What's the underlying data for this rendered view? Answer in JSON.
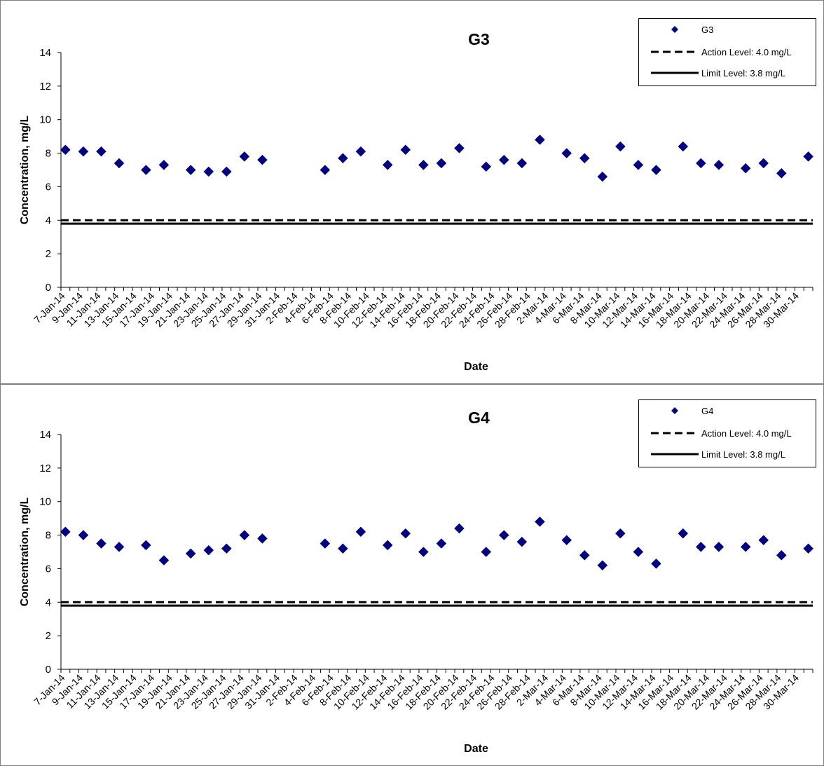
{
  "chart_data": [
    {
      "type": "scatter",
      "title": "G3",
      "xlabel": "Date",
      "ylabel": "Concentration, mg/L",
      "ylim": [
        0,
        14
      ],
      "yticks": [
        "0",
        "2",
        "4",
        "6",
        "8",
        "10",
        "12",
        "14"
      ],
      "grid": false,
      "legend_position": "top-right",
      "x_ticks": [
        "7-Jan-14",
        "9-Jan-14",
        "11-Jan-14",
        "13-Jan-14",
        "15-Jan-14",
        "17-Jan-14",
        "19-Jan-14",
        "21-Jan-14",
        "23-Jan-14",
        "25-Jan-14",
        "27-Jan-14",
        "29-Jan-14",
        "31-Jan-14",
        "2-Feb-14",
        "4-Feb-14",
        "6-Feb-14",
        "8-Feb-14",
        "10-Feb-14",
        "12-Feb-14",
        "14-Feb-14",
        "16-Feb-14",
        "18-Feb-14",
        "20-Feb-14",
        "22-Feb-14",
        "24-Feb-14",
        "26-Feb-14",
        "28-Feb-14",
        "2-Mar-14",
        "4-Mar-14",
        "6-Mar-14",
        "8-Mar-14",
        "10-Mar-14",
        "12-Mar-14",
        "14-Mar-14",
        "16-Mar-14",
        "18-Mar-14",
        "20-Mar-14",
        "22-Mar-14",
        "24-Mar-14",
        "26-Mar-14",
        "28-Mar-14",
        "30-Mar-14"
      ],
      "x_last": "31-Mar-14",
      "series": [
        {
          "name": "G3",
          "kind": "points",
          "color": "#000080",
          "x": [
            "7-Jan-14",
            "9-Jan-14",
            "11-Jan-14",
            "13-Jan-14",
            "16-Jan-14",
            "18-Jan-14",
            "21-Jan-14",
            "23-Jan-14",
            "25-Jan-14",
            "27-Jan-14",
            "29-Jan-14",
            "5-Feb-14",
            "7-Feb-14",
            "9-Feb-14",
            "12-Feb-14",
            "14-Feb-14",
            "16-Feb-14",
            "18-Feb-14",
            "20-Feb-14",
            "23-Feb-14",
            "25-Feb-14",
            "27-Feb-14",
            "1-Mar-14",
            "4-Mar-14",
            "6-Mar-14",
            "8-Mar-14",
            "10-Mar-14",
            "12-Mar-14",
            "14-Mar-14",
            "17-Mar-14",
            "19-Mar-14",
            "21-Mar-14",
            "24-Mar-14",
            "26-Mar-14",
            "28-Mar-14",
            "31-Mar-14"
          ],
          "y": [
            8.2,
            8.1,
            8.1,
            7.4,
            7.0,
            7.3,
            7.0,
            6.9,
            6.9,
            7.8,
            7.6,
            7.0,
            7.7,
            8.1,
            7.3,
            8.2,
            7.3,
            7.4,
            8.3,
            7.2,
            7.6,
            7.4,
            8.8,
            8.0,
            7.7,
            6.6,
            8.4,
            7.3,
            7.0,
            8.4,
            7.4,
            7.3,
            7.1,
            7.4,
            6.8,
            7.8
          ]
        },
        {
          "name": "Action Level: 4.0 mg/L",
          "kind": "line",
          "style": "dashed",
          "color": "#000000",
          "y": 4.0
        },
        {
          "name": "Limit Level: 3.8 mg/L",
          "kind": "line",
          "style": "solid",
          "color": "#000000",
          "y": 3.8
        }
      ]
    },
    {
      "type": "scatter",
      "title": "G4",
      "xlabel": "Date",
      "ylabel": "Concentration, mg/L",
      "ylim": [
        0,
        14
      ],
      "yticks": [
        "0",
        "2",
        "4",
        "6",
        "8",
        "10",
        "12",
        "14"
      ],
      "grid": false,
      "legend_position": "top-right",
      "x_ticks": [
        "7-Jan-14",
        "9-Jan-14",
        "11-Jan-14",
        "13-Jan-14",
        "15-Jan-14",
        "17-Jan-14",
        "19-Jan-14",
        "21-Jan-14",
        "23-Jan-14",
        "25-Jan-14",
        "27-Jan-14",
        "29-Jan-14",
        "31-Jan-14",
        "2-Feb-14",
        "4-Feb-14",
        "6-Feb-14",
        "8-Feb-14",
        "10-Feb-14",
        "12-Feb-14",
        "14-Feb-14",
        "16-Feb-14",
        "18-Feb-14",
        "20-Feb-14",
        "22-Feb-14",
        "24-Feb-14",
        "26-Feb-14",
        "28-Feb-14",
        "2-Mar-14",
        "4-Mar-14",
        "6-Mar-14",
        "8-Mar-14",
        "10-Mar-14",
        "12-Mar-14",
        "14-Mar-14",
        "16-Mar-14",
        "18-Mar-14",
        "20-Mar-14",
        "22-Mar-14",
        "24-Mar-14",
        "26-Mar-14",
        "28-Mar-14",
        "30-Mar-14"
      ],
      "x_last": "31-Mar-14",
      "series": [
        {
          "name": "G4",
          "kind": "points",
          "color": "#000080",
          "x": [
            "7-Jan-14",
            "9-Jan-14",
            "11-Jan-14",
            "13-Jan-14",
            "16-Jan-14",
            "18-Jan-14",
            "21-Jan-14",
            "23-Jan-14",
            "25-Jan-14",
            "27-Jan-14",
            "29-Jan-14",
            "5-Feb-14",
            "7-Feb-14",
            "9-Feb-14",
            "12-Feb-14",
            "14-Feb-14",
            "16-Feb-14",
            "18-Feb-14",
            "20-Feb-14",
            "23-Feb-14",
            "25-Feb-14",
            "27-Feb-14",
            "1-Mar-14",
            "4-Mar-14",
            "6-Mar-14",
            "8-Mar-14",
            "10-Mar-14",
            "12-Mar-14",
            "14-Mar-14",
            "17-Mar-14",
            "19-Mar-14",
            "21-Mar-14",
            "24-Mar-14",
            "26-Mar-14",
            "28-Mar-14",
            "31-Mar-14"
          ],
          "y": [
            8.2,
            8.0,
            7.5,
            7.3,
            7.4,
            6.5,
            6.9,
            7.1,
            7.2,
            8.0,
            7.8,
            7.5,
            7.2,
            8.2,
            7.4,
            8.1,
            7.0,
            7.5,
            8.4,
            7.0,
            8.0,
            7.6,
            8.8,
            7.7,
            6.8,
            6.2,
            8.1,
            7.0,
            6.3,
            8.1,
            7.3,
            7.3,
            7.3,
            7.7,
            6.8,
            7.2
          ]
        },
        {
          "name": "Action Level: 4.0 mg/L",
          "kind": "line",
          "style": "dashed",
          "color": "#000000",
          "y": 4.0
        },
        {
          "name": "Limit Level: 3.8 mg/L",
          "kind": "line",
          "style": "solid",
          "color": "#000000",
          "y": 3.8
        }
      ]
    }
  ]
}
